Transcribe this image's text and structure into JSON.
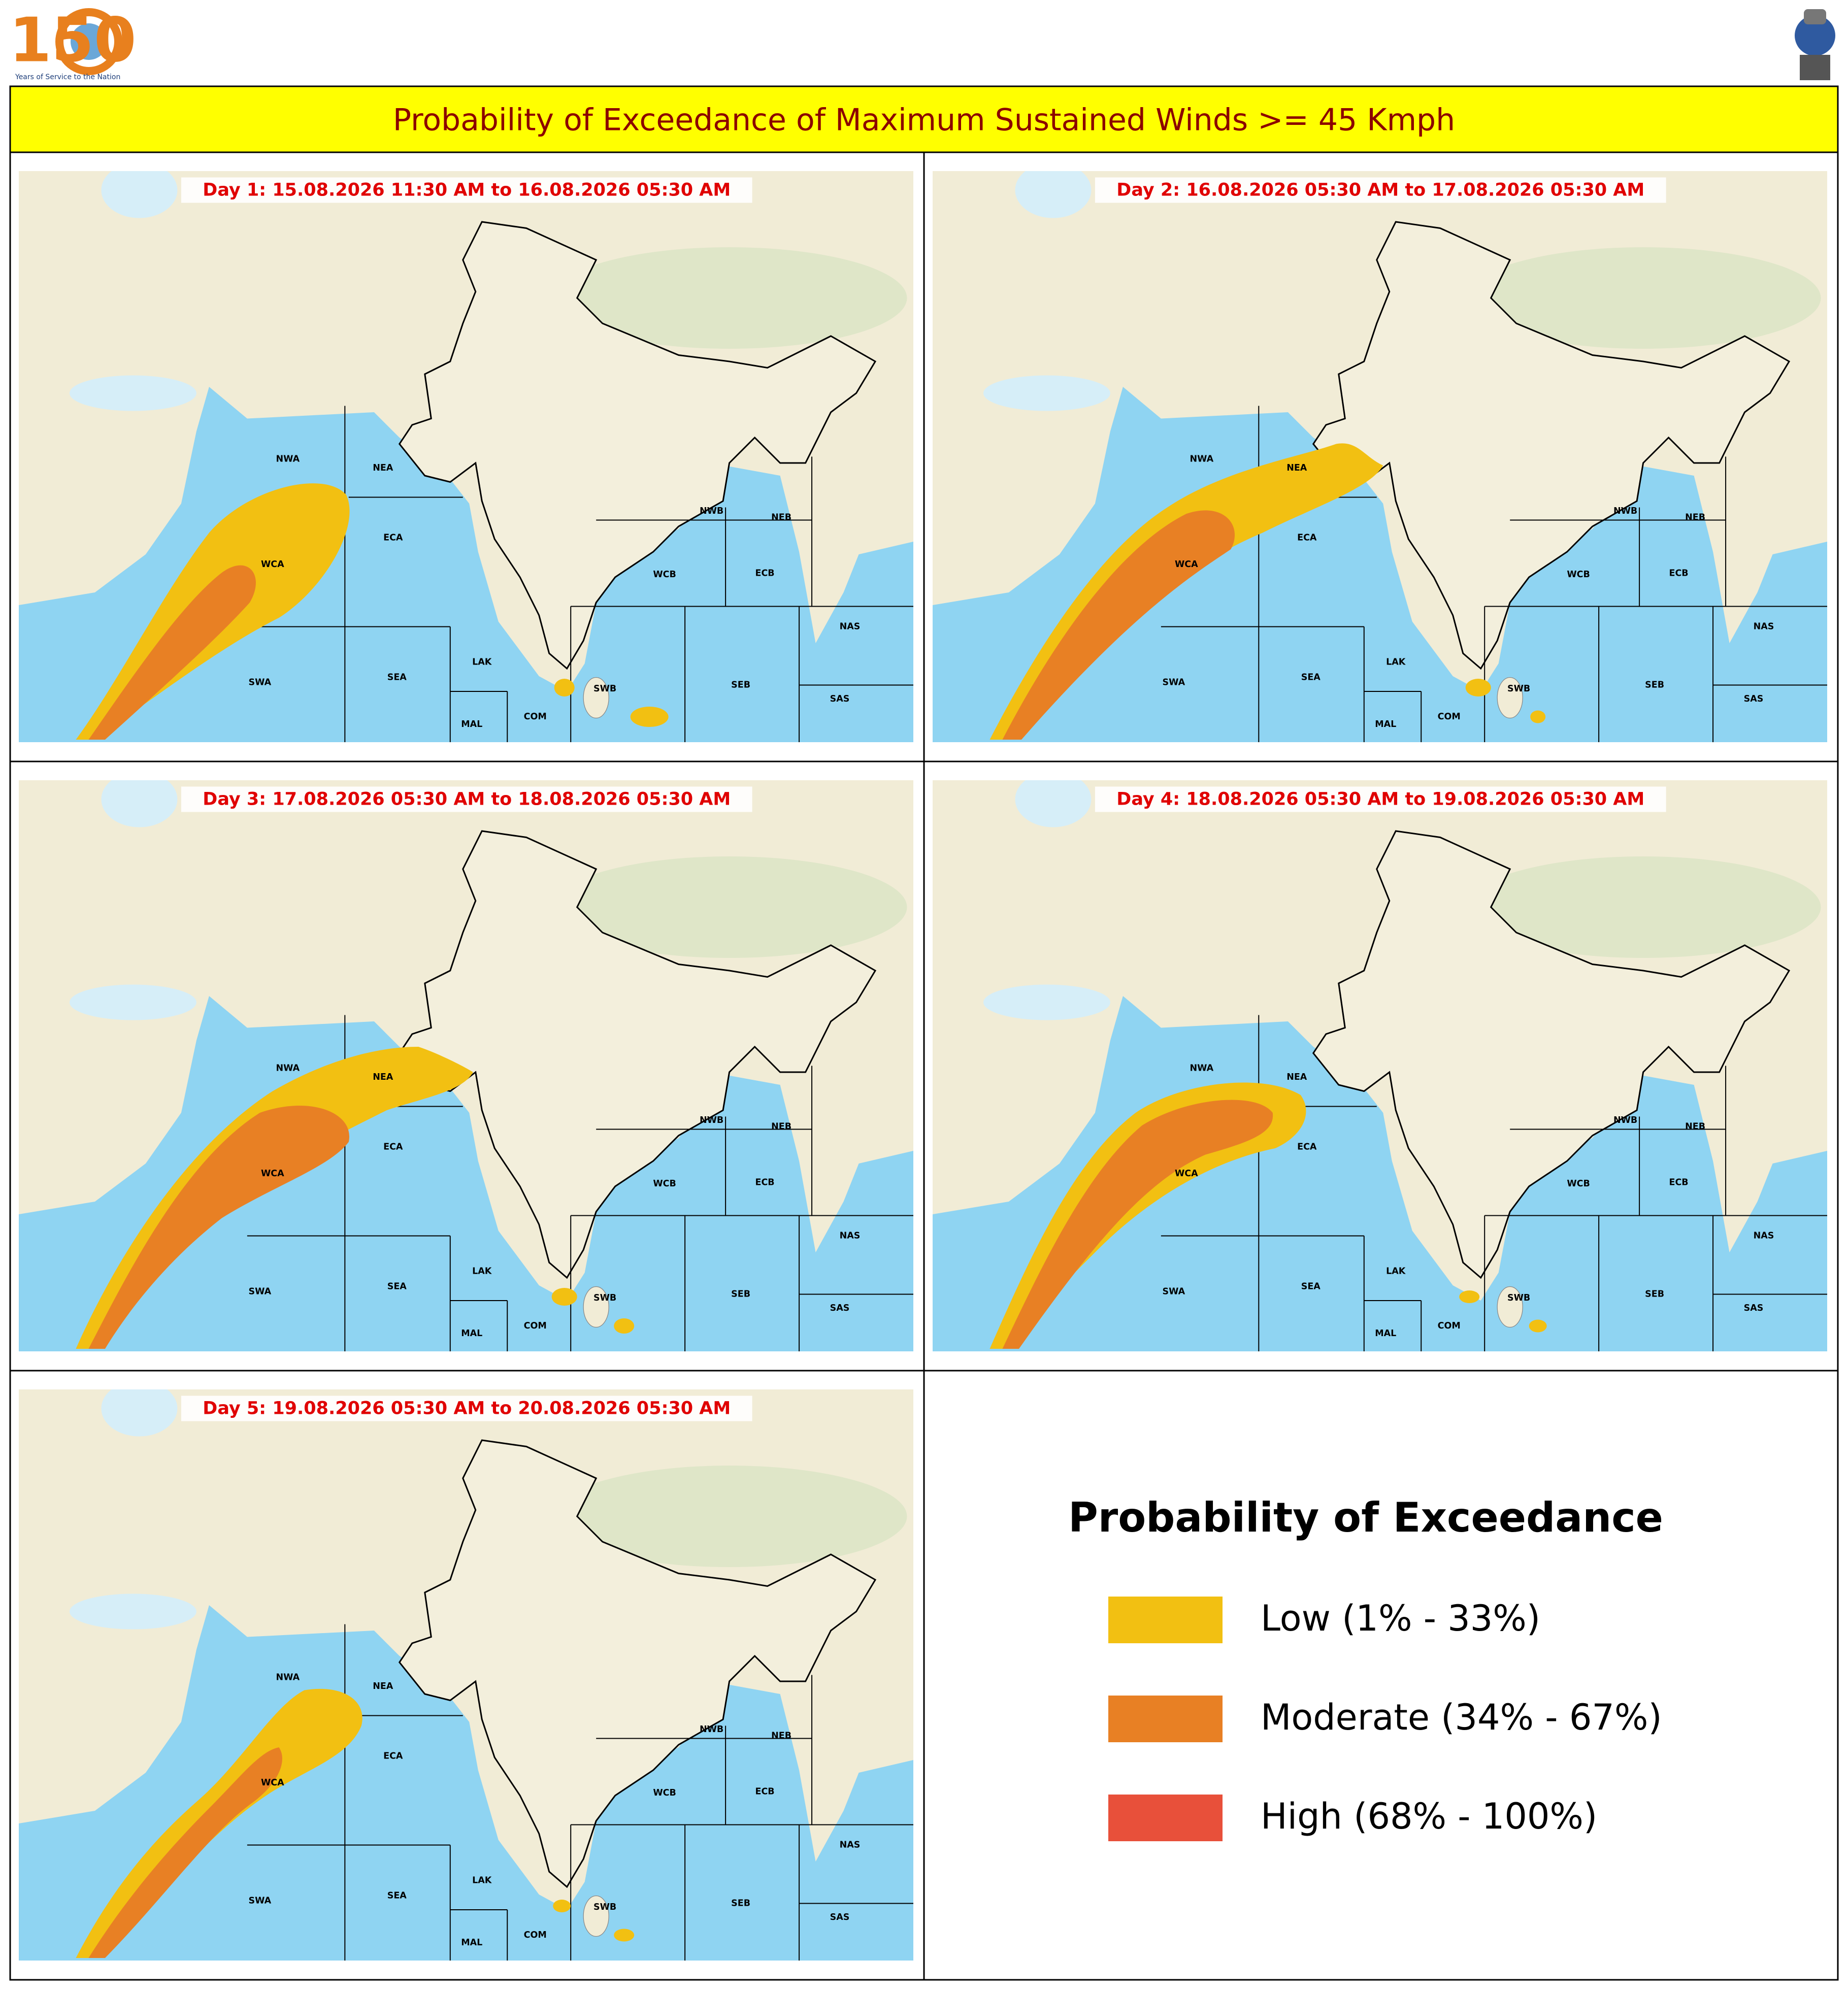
{
  "header": {
    "logo_number": "150",
    "logo_tagline": "Years of Service to the Nation",
    "title": "Probability of Exceedance of Maximum Sustained Winds >= 45 Kmph"
  },
  "panels": [
    {
      "title": "Day 1: 15.08.2026 11:30 AM to 16.08.2026 05:30 AM"
    },
    {
      "title": "Day 2: 16.08.2026 05:30 AM to 17.08.2026 05:30 AM"
    },
    {
      "title": "Day 3: 17.08.2026 05:30 AM to 18.08.2026 05:30 AM"
    },
    {
      "title": "Day 4: 18.08.2026 05:30 AM to 19.08.2026 05:30 AM"
    },
    {
      "title": "Day 5: 19.08.2026 05:30 AM to 20.08.2026 05:30 AM"
    }
  ],
  "region_labels": [
    "NWA",
    "NEA",
    "WCA",
    "ECA",
    "SWA",
    "SEA",
    "LAK",
    "MAL",
    "COM",
    "SWB",
    "SEB",
    "WCB",
    "ECB",
    "NWB",
    "NEB",
    "NAS",
    "SAS"
  ],
  "legend": {
    "title": "Probability of Exceedance",
    "items": [
      {
        "label": "Low (1% - 33%)",
        "color": "#f2c012"
      },
      {
        "label": "Moderate (34% - 67%)",
        "color": "#e88024"
      },
      {
        "label": "High (68% - 100%)",
        "color": "#e8503a"
      }
    ]
  }
}
